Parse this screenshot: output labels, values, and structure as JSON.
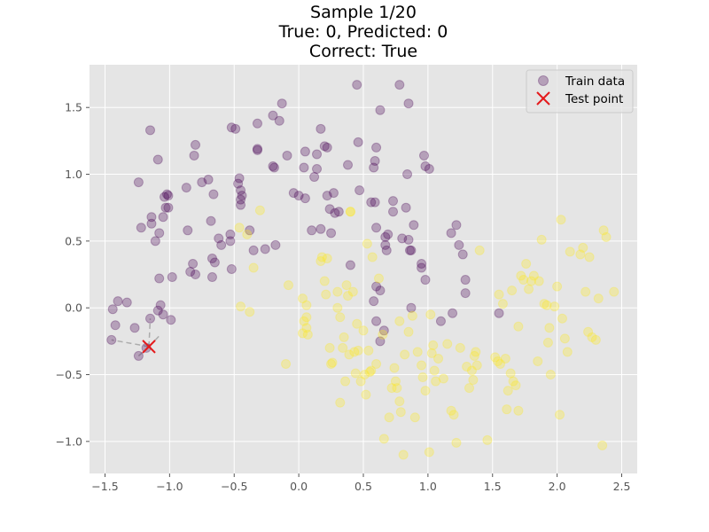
{
  "chart_data": {
    "type": "scatter",
    "title_lines": [
      "Sample 1/20",
      "True: 0, Predicted: 0",
      "Correct: True"
    ],
    "xlabel": "",
    "ylabel": "",
    "xlim": [
      -1.62,
      2.62
    ],
    "ylim": [
      -1.24,
      1.82
    ],
    "x_ticks": [
      -1.5,
      -1.0,
      -0.5,
      0.0,
      0.5,
      1.0,
      1.5,
      2.0,
      2.5
    ],
    "x_tick_labels": [
      "−1.5",
      "−1.0",
      "−0.5",
      "0.0",
      "0.5",
      "1.0",
      "1.5",
      "2.0",
      "2.5"
    ],
    "y_ticks": [
      -1.0,
      -0.5,
      0.0,
      0.5,
      1.0,
      1.5
    ],
    "y_tick_labels": [
      "−1.0",
      "−0.5",
      "0.0",
      "0.5",
      "1.0",
      "1.5"
    ],
    "grid": true,
    "style": "ggplot",
    "legend": {
      "position": "top-right",
      "entries": [
        "Train data",
        "Test point"
      ]
    },
    "colors": {
      "class_0": "#440154",
      "class_1": "#fde725",
      "test_point": "#e41a1c",
      "background": "#e5e5e5",
      "grid": "#ffffff",
      "neighbor_line": "#9e9e9e"
    },
    "series": [
      {
        "name": "Train data",
        "class": 0,
        "points": [
          [
            -1.4,
            0.05
          ],
          [
            -1.44,
            -0.01
          ],
          [
            -1.42,
            -0.13
          ],
          [
            -1.45,
            -0.24
          ],
          [
            -1.33,
            0.04
          ],
          [
            -1.27,
            -0.15
          ],
          [
            -1.15,
            -0.08
          ],
          [
            -1.18,
            -0.3
          ],
          [
            -1.24,
            -0.36
          ],
          [
            -1.09,
            -0.02
          ],
          [
            -1.07,
            0.02
          ],
          [
            -1.05,
            -0.05
          ],
          [
            -0.99,
            -0.09
          ],
          [
            -1.08,
            0.22
          ],
          [
            -0.98,
            0.23
          ],
          [
            -1.14,
            0.68
          ],
          [
            -1.14,
            0.63
          ],
          [
            -1.11,
            0.5
          ],
          [
            -1.22,
            0.6
          ],
          [
            -1.05,
            0.68
          ],
          [
            -1.03,
            0.75
          ],
          [
            -1.01,
            0.75
          ],
          [
            -1.08,
            0.56
          ],
          [
            -0.86,
            0.58
          ],
          [
            -0.82,
            0.33
          ],
          [
            -0.84,
            0.27
          ],
          [
            -0.8,
            0.25
          ],
          [
            -0.67,
            0.23
          ],
          [
            -0.67,
            0.37
          ],
          [
            -0.65,
            0.34
          ],
          [
            -0.62,
            0.52
          ],
          [
            -0.6,
            0.47
          ],
          [
            -0.53,
            0.5
          ],
          [
            -0.53,
            0.55
          ],
          [
            -0.52,
            0.29
          ],
          [
            -0.68,
            0.65
          ],
          [
            -0.66,
            0.85
          ],
          [
            -0.7,
            0.96
          ],
          [
            -0.75,
            0.94
          ],
          [
            -0.81,
            1.14
          ],
          [
            -0.8,
            1.22
          ],
          [
            -0.87,
            0.9
          ],
          [
            -1.04,
            0.83
          ],
          [
            -1.02,
            0.85
          ],
          [
            -1.01,
            0.84
          ],
          [
            -1.24,
            0.94
          ],
          [
            -1.09,
            1.11
          ],
          [
            -1.15,
            1.33
          ],
          [
            -0.52,
            1.35
          ],
          [
            -0.49,
            1.34
          ],
          [
            -0.46,
            0.97
          ],
          [
            -0.47,
            0.93
          ],
          [
            -0.45,
            0.88
          ],
          [
            -0.44,
            0.84
          ],
          [
            -0.45,
            0.81
          ],
          [
            -0.45,
            0.77
          ],
          [
            -0.32,
            1.19
          ],
          [
            -0.32,
            1.18
          ],
          [
            -0.32,
            1.38
          ],
          [
            -0.2,
            1.44
          ],
          [
            -0.15,
            1.4
          ],
          [
            -0.13,
            1.53
          ],
          [
            -0.2,
            1.06
          ],
          [
            -0.19,
            1.05
          ],
          [
            -0.09,
            1.14
          ],
          [
            -0.04,
            0.86
          ],
          [
            0.0,
            0.84
          ],
          [
            0.05,
            0.82
          ],
          [
            0.04,
            1.05
          ],
          [
            0.05,
            1.17
          ],
          [
            0.14,
            1.15
          ],
          [
            0.14,
            1.04
          ],
          [
            0.12,
            0.98
          ],
          [
            0.17,
            1.34
          ],
          [
            0.2,
            1.21
          ],
          [
            0.22,
            1.2
          ],
          [
            0.22,
            0.84
          ],
          [
            0.27,
            0.86
          ],
          [
            0.24,
            0.74
          ],
          [
            0.28,
            0.71
          ],
          [
            0.31,
            0.72
          ],
          [
            0.38,
            1.07
          ],
          [
            0.46,
            1.24
          ],
          [
            0.47,
            0.88
          ],
          [
            0.45,
            1.67
          ],
          [
            0.63,
            1.48
          ],
          [
            0.78,
            1.67
          ],
          [
            0.85,
            1.53
          ],
          [
            0.56,
            0.79
          ],
          [
            0.59,
            0.79
          ],
          [
            0.6,
            1.2
          ],
          [
            0.59,
            1.1
          ],
          [
            0.58,
            1.05
          ],
          [
            0.67,
            0.47
          ],
          [
            0.67,
            0.53
          ],
          [
            0.68,
            0.43
          ],
          [
            0.69,
            0.55
          ],
          [
            0.73,
            0.8
          ],
          [
            0.73,
            0.72
          ],
          [
            0.8,
            0.52
          ],
          [
            0.83,
            0.75
          ],
          [
            0.84,
            1.0
          ],
          [
            0.85,
            0.51
          ],
          [
            0.86,
            0.43
          ],
          [
            0.87,
            0.43
          ],
          [
            0.89,
            0.62
          ],
          [
            0.95,
            0.33
          ],
          [
            0.95,
            0.3
          ],
          [
            0.98,
            1.06
          ],
          [
            1.01,
            1.04
          ],
          [
            0.97,
            1.14
          ],
          [
            0.98,
            0.21
          ],
          [
            0.6,
            0.6
          ],
          [
            0.6,
            0.16
          ],
          [
            0.63,
            0.13
          ],
          [
            0.58,
            0.05
          ],
          [
            0.6,
            -0.1
          ],
          [
            0.63,
            -0.25
          ],
          [
            0.66,
            -0.17
          ],
          [
            0.87,
            0.0
          ],
          [
            1.1,
            -0.1
          ],
          [
            1.18,
            0.56
          ],
          [
            1.22,
            0.62
          ],
          [
            1.24,
            0.47
          ],
          [
            1.27,
            0.4
          ],
          [
            1.29,
            0.21
          ],
          [
            1.29,
            0.11
          ],
          [
            1.19,
            -0.04
          ],
          [
            1.55,
            -0.04
          ],
          [
            0.4,
            0.32
          ],
          [
            0.17,
            0.59
          ],
          [
            0.25,
            0.56
          ],
          [
            0.1,
            0.58
          ],
          [
            -0.18,
            0.47
          ],
          [
            -0.26,
            0.44
          ],
          [
            -0.35,
            0.43
          ],
          [
            -0.38,
            0.58
          ]
        ]
      },
      {
        "name": "Train data",
        "class": 1,
        "points": [
          [
            -0.46,
            0.6
          ],
          [
            -0.4,
            0.55
          ],
          [
            -0.45,
            0.01
          ],
          [
            -0.38,
            -0.03
          ],
          [
            -0.3,
            0.73
          ],
          [
            -0.35,
            0.3
          ],
          [
            -0.08,
            0.17
          ],
          [
            -0.1,
            -0.42
          ],
          [
            0.03,
            -0.19
          ],
          [
            0.07,
            -0.2
          ],
          [
            0.03,
            0.07
          ],
          [
            0.06,
            0.02
          ],
          [
            0.04,
            -0.1
          ],
          [
            0.06,
            -0.07
          ],
          [
            0.06,
            -0.15
          ],
          [
            0.17,
            0.35
          ],
          [
            0.18,
            0.38
          ],
          [
            0.2,
            0.2
          ],
          [
            0.21,
            0.1
          ],
          [
            0.22,
            0.37
          ],
          [
            0.24,
            -0.3
          ],
          [
            0.25,
            -0.42
          ],
          [
            0.26,
            -0.41
          ],
          [
            0.3,
            0.0
          ],
          [
            0.32,
            -0.71
          ],
          [
            0.3,
            0.12
          ],
          [
            0.32,
            -0.07
          ],
          [
            0.34,
            -0.3
          ],
          [
            0.35,
            -0.22
          ],
          [
            0.36,
            -0.55
          ],
          [
            0.37,
            0.17
          ],
          [
            0.38,
            0.09
          ],
          [
            0.39,
            -0.35
          ],
          [
            0.4,
            0.72
          ],
          [
            0.4,
            0.72
          ],
          [
            0.42,
            0.12
          ],
          [
            0.43,
            -0.33
          ],
          [
            0.44,
            -0.49
          ],
          [
            0.45,
            -0.12
          ],
          [
            0.46,
            -0.32
          ],
          [
            0.48,
            -0.55
          ],
          [
            0.5,
            -0.17
          ],
          [
            0.51,
            -0.5
          ],
          [
            0.52,
            -0.65
          ],
          [
            0.53,
            0.48
          ],
          [
            0.54,
            -0.32
          ],
          [
            0.55,
            -0.48
          ],
          [
            0.56,
            -0.47
          ],
          [
            0.57,
            0.38
          ],
          [
            0.6,
            -0.42
          ],
          [
            0.62,
            0.22
          ],
          [
            0.65,
            -0.2
          ],
          [
            0.66,
            -0.98
          ],
          [
            0.7,
            -0.82
          ],
          [
            0.72,
            -0.6
          ],
          [
            0.74,
            -0.45
          ],
          [
            0.75,
            -0.55
          ],
          [
            0.76,
            -0.6
          ],
          [
            0.78,
            -0.1
          ],
          [
            0.78,
            -0.7
          ],
          [
            0.79,
            -0.78
          ],
          [
            0.81,
            -1.1
          ],
          [
            0.82,
            -0.35
          ],
          [
            0.85,
            -0.18
          ],
          [
            0.88,
            -0.06
          ],
          [
            0.9,
            -0.82
          ],
          [
            0.92,
            -0.33
          ],
          [
            0.95,
            -0.43
          ],
          [
            0.96,
            -0.52
          ],
          [
            0.98,
            -0.62
          ],
          [
            1.01,
            -1.08
          ],
          [
            1.02,
            -0.05
          ],
          [
            1.03,
            -0.34
          ],
          [
            1.04,
            -0.28
          ],
          [
            1.05,
            -0.47
          ],
          [
            1.06,
            -0.55
          ],
          [
            1.08,
            -0.38
          ],
          [
            1.12,
            -0.53
          ],
          [
            1.15,
            -0.27
          ],
          [
            1.18,
            -0.77
          ],
          [
            1.2,
            -0.8
          ],
          [
            1.22,
            -1.01
          ],
          [
            1.25,
            -0.3
          ],
          [
            1.3,
            -0.44
          ],
          [
            1.32,
            -0.6
          ],
          [
            1.34,
            -0.47
          ],
          [
            1.35,
            -0.54
          ],
          [
            1.36,
            -0.36
          ],
          [
            1.38,
            -0.43
          ],
          [
            1.4,
            0.43
          ],
          [
            1.46,
            -0.99
          ],
          [
            1.52,
            -0.37
          ],
          [
            1.54,
            -0.4
          ],
          [
            1.55,
            0.1
          ],
          [
            1.58,
            0.03
          ],
          [
            1.6,
            -0.38
          ],
          [
            1.61,
            -0.76
          ],
          [
            1.62,
            -0.62
          ],
          [
            1.64,
            -0.49
          ],
          [
            1.65,
            0.13
          ],
          [
            1.66,
            -0.55
          ],
          [
            1.68,
            -0.58
          ],
          [
            1.7,
            -0.14
          ],
          [
            1.72,
            0.24
          ],
          [
            1.74,
            0.21
          ],
          [
            1.76,
            0.33
          ],
          [
            1.78,
            0.14
          ],
          [
            1.8,
            0.2
          ],
          [
            1.82,
            0.24
          ],
          [
            1.85,
            -0.4
          ],
          [
            1.86,
            0.2
          ],
          [
            1.9,
            0.03
          ],
          [
            1.92,
            0.02
          ],
          [
            1.94,
            -0.15
          ],
          [
            1.95,
            -0.5
          ],
          [
            1.98,
            0.01
          ],
          [
            2.0,
            0.16
          ],
          [
            2.02,
            -0.8
          ],
          [
            2.03,
            0.66
          ],
          [
            2.04,
            -0.08
          ],
          [
            2.06,
            -0.23
          ],
          [
            2.08,
            -0.33
          ],
          [
            2.1,
            0.42
          ],
          [
            2.18,
            0.4
          ],
          [
            2.2,
            0.45
          ],
          [
            2.22,
            0.12
          ],
          [
            2.24,
            -0.18
          ],
          [
            2.25,
            0.38
          ],
          [
            2.27,
            -0.22
          ],
          [
            2.3,
            -0.24
          ],
          [
            2.32,
            0.07
          ],
          [
            2.36,
            0.58
          ],
          [
            2.38,
            0.53
          ],
          [
            2.44,
            0.12
          ],
          [
            2.35,
            -1.03
          ],
          [
            1.88,
            0.51
          ],
          [
            1.7,
            -0.77
          ],
          [
            1.93,
            -0.26
          ],
          [
            1.56,
            -0.42
          ],
          [
            1.37,
            -0.33
          ]
        ]
      },
      {
        "name": "Test point",
        "class": 0,
        "points": [
          [
            -1.16,
            -0.29
          ]
        ]
      }
    ],
    "neighbor_lines_to": [
      [
        -1.45,
        -0.24
      ],
      [
        -1.24,
        -0.36
      ],
      [
        -1.18,
        -0.3
      ],
      [
        -1.15,
        -0.08
      ],
      [
        -1.07,
        -0.2
      ]
    ]
  }
}
